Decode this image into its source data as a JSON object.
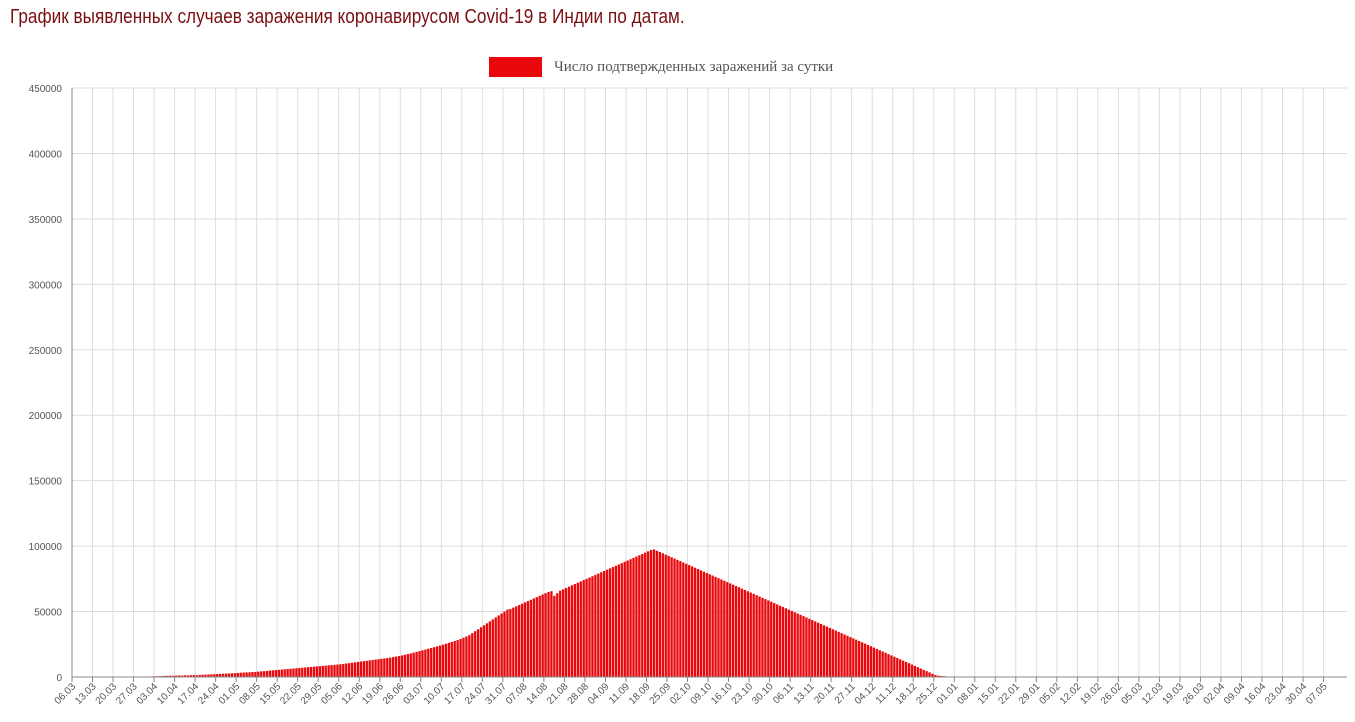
{
  "page": {
    "title": "График выявленных случаев заражения коронавирусом Covid-19 в Индии по датам."
  },
  "colors": {
    "bar": "#e8080b",
    "title": "#7a0f12",
    "grid": "#dddddd",
    "axis": "#888888",
    "tick_text": "#555555"
  },
  "chart_data": {
    "type": "bar",
    "title": "",
    "xlabel": "",
    "ylabel": "",
    "ylim": [
      0,
      450000
    ],
    "yticks": [
      0,
      50000,
      100000,
      150000,
      200000,
      250000,
      300000,
      350000,
      400000,
      450000
    ],
    "grid": true,
    "legend_position": "top-center",
    "x_start": "06.03",
    "x_tick_labels": [
      "06.03",
      "13.03",
      "20.03",
      "27.03",
      "03.04",
      "10.04",
      "17.04",
      "24.04",
      "01.05",
      "08.05",
      "15.05",
      "22.05",
      "29.05",
      "05.06",
      "12.06",
      "19.06",
      "26.06",
      "03.07",
      "10.07",
      "17.07",
      "24.07",
      "31.07",
      "07.08",
      "14.08",
      "21.08",
      "28.08",
      "04.09",
      "11.09",
      "18.09",
      "25.09",
      "02.10",
      "09.10",
      "16.10",
      "23.10",
      "30.10",
      "06.11",
      "13.11",
      "20.11",
      "27.11",
      "04.12",
      "11.12",
      "18.12",
      "25.12",
      "01.01",
      "08.01",
      "15.01",
      "22.01",
      "29.01",
      "05.02",
      "12.02",
      "19.02",
      "26.02",
      "05.03",
      "12.03",
      "19.03",
      "26.03",
      "02.04",
      "09.04",
      "16.04",
      "23.04",
      "30.04",
      "07.05"
    ],
    "series": [
      {
        "name": "Число подтвержденных заражений за сутки",
        "values": [
          10,
          10,
          20,
          10,
          10,
          10,
          15,
          20,
          20,
          30,
          40,
          50,
          60,
          80,
          90,
          100,
          120,
          90,
          100,
          150,
          180,
          220,
          240,
          260,
          300,
          400,
          350,
          500,
          550,
          600,
          700,
          800,
          900,
          1000,
          900,
          1100,
          1200,
          1100,
          1300,
          1200,
          1400,
          1500,
          1300,
          1600,
          1700,
          1800,
          1900,
          2000,
          2100,
          2300,
          2400,
          2500,
          2600,
          2700,
          2800,
          2900,
          3100,
          3300,
          3400,
          3500,
          3600,
          3800,
          3900,
          4100,
          4300,
          4500,
          4700,
          4900,
          5100,
          5300,
          5500,
          5700,
          5900,
          6100,
          6300,
          6500,
          6700,
          6900,
          7100,
          7300,
          7500,
          7700,
          7900,
          8100,
          8300,
          8500,
          8700,
          8900,
          9100,
          9300,
          9500,
          9700,
          10000,
          10300,
          10600,
          10900,
          11200,
          11500,
          11800,
          12100,
          12400,
          12700,
          13000,
          13300,
          13600,
          13900,
          14200,
          14500,
          14800,
          15200,
          15600,
          16000,
          16500,
          17000,
          17500,
          18000,
          18600,
          19200,
          19800,
          20400,
          21000,
          21600,
          22200,
          22800,
          23400,
          24000,
          24700,
          25400,
          26100,
          26800,
          27500,
          28200,
          29000,
          30000,
          31000,
          32000,
          33500,
          35000,
          36500,
          38000,
          39500,
          41000,
          42500,
          44000,
          45500,
          47000,
          48500,
          50000,
          51500,
          52000,
          53000,
          54000,
          55000,
          56000,
          57000,
          58000,
          59000,
          60000,
          61000,
          62000,
          63000,
          64000,
          65000,
          65500,
          62000,
          64000,
          66000,
          67000,
          68000,
          69000,
          70000,
          71000,
          72000,
          73000,
          74000,
          75000,
          76000,
          77000,
          78000,
          79000,
          80000,
          81000,
          82000,
          83000,
          84000,
          85000,
          86000,
          87000,
          88000,
          89000,
          90000,
          91000,
          92000,
          93000,
          94000,
          95000,
          96000,
          97000,
          97500,
          96500,
          95500,
          94500,
          93500,
          92500,
          91500,
          90500,
          89500,
          88500,
          87500,
          86500,
          85500,
          84500,
          83500,
          82500,
          81500,
          80500,
          79500,
          78500,
          77500,
          76500,
          75500,
          74500,
          73500,
          72500,
          71500,
          70500,
          69500,
          68500,
          67500,
          66500,
          65500,
          64500,
          63500,
          62500,
          61500,
          60500,
          59500,
          58500,
          57500,
          56500,
          55500,
          54500,
          53500,
          52500,
          51500,
          50500,
          49500,
          48500,
          47500,
          46500,
          45500,
          44500,
          43500,
          42500,
          41500,
          40500,
          39500,
          38500,
          37500,
          36500,
          35500,
          34500,
          33500,
          32500,
          31500,
          30500,
          29500,
          28500,
          27500,
          26500,
          25500,
          24500,
          23500,
          22500,
          21500,
          20500,
          19500,
          18500,
          17500,
          16500,
          15500,
          14500,
          13500,
          12500,
          11500,
          10500,
          9500,
          8500,
          7500,
          6500,
          5500,
          4500,
          3500,
          2500,
          1500,
          1000,
          800,
          600,
          400,
          200,
          100,
          50,
          20,
          10,
          5,
          2,
          1,
          1,
          1,
          1,
          1,
          1,
          1,
          1,
          1,
          1,
          1,
          1,
          1,
          1,
          1,
          1,
          1,
          1,
          1,
          1,
          1,
          1,
          1,
          1,
          1,
          1,
          1,
          1,
          1,
          1,
          1,
          1,
          1,
          1,
          1,
          1,
          1,
          1,
          1,
          1,
          1,
          1,
          1,
          1,
          1,
          1,
          1,
          1,
          1,
          1,
          1,
          1,
          1,
          1,
          1,
          1,
          1,
          1,
          1,
          1,
          1,
          1,
          1,
          1,
          1,
          1,
          1,
          1,
          1,
          1,
          1,
          1,
          1,
          1,
          1,
          1,
          1,
          1,
          1,
          1,
          1,
          1,
          1,
          1,
          1,
          1,
          1,
          1,
          1,
          1,
          1,
          1,
          1,
          1,
          1,
          1,
          1,
          1,
          1,
          1,
          1,
          1,
          1,
          1,
          1,
          1,
          1,
          1,
          1,
          1,
          1,
          1,
          1,
          1,
          1,
          1,
          1,
          1,
          1,
          1,
          1,
          1,
          1,
          1,
          1,
          1,
          1,
          1,
          1
        ]
      }
    ]
  }
}
